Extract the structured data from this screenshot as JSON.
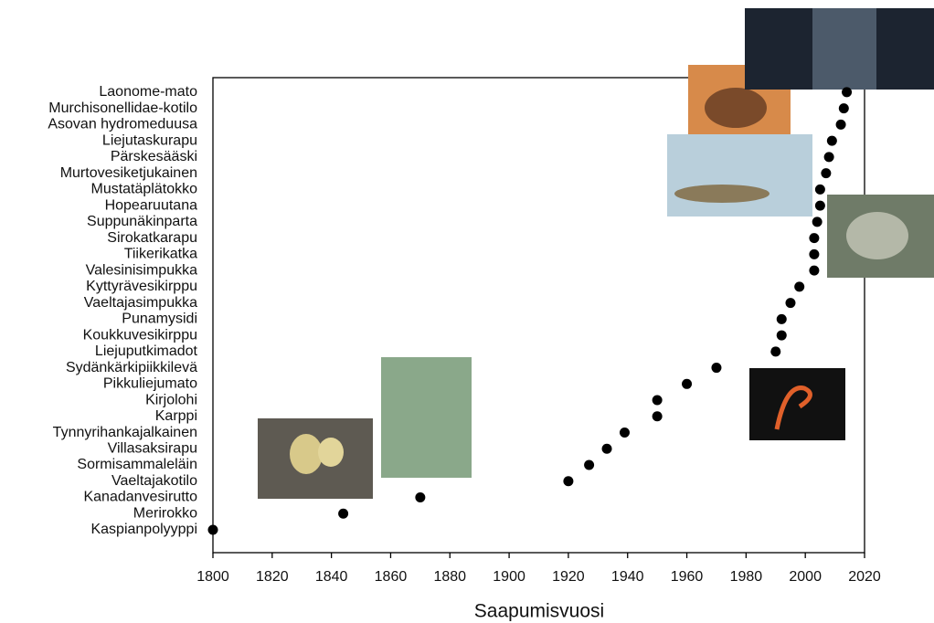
{
  "chart_data": {
    "type": "scatter",
    "x_label": "Saapumisvuosi",
    "categories": [
      "Kaspianpolyyppi",
      "Merirokko",
      "Kanadanvesirutto",
      "Vaeltajakotilo",
      "Sormisammaleläin",
      "Villasaksirapu",
      "Tynnyrihankajalkainen",
      "Karppi",
      "Kirjolohi",
      "Pikkuliejumato",
      "Sydänkärkipiikkilevä",
      "Liejuputkimadot",
      "Koukkuvesikirppu",
      "Punamysidi",
      "Vaeltajasimpukka",
      "Kyttyrävesikirppu",
      "Valesinisimpukka",
      "Tiikerikatka",
      "Sirokatkarapu",
      "Suppunäkinparta",
      "Hopearuutana",
      "Mustatäplätokko",
      "Murtovesiketjukainen",
      "Pärskesääski",
      "Liejutaskurapu",
      "Asovan hydromeduusa",
      "Murchisonellidae-kotilo",
      "Laonome-mato"
    ],
    "values": [
      1800,
      1844,
      1870,
      1920,
      1927,
      1933,
      1939,
      1950,
      1950,
      1960,
      1970,
      1990,
      1992,
      1992,
      1995,
      1998,
      2003,
      2003,
      2003,
      2004,
      2005,
      2005,
      2007,
      2008,
      2009,
      2012,
      2013,
      2014
    ],
    "color": "#000000",
    "xlim": [
      1800,
      2020
    ],
    "xticks": [
      1800,
      1820,
      1840,
      1860,
      1880,
      1900,
      1920,
      1940,
      1960,
      1980,
      2000,
      2020
    ]
  }
}
